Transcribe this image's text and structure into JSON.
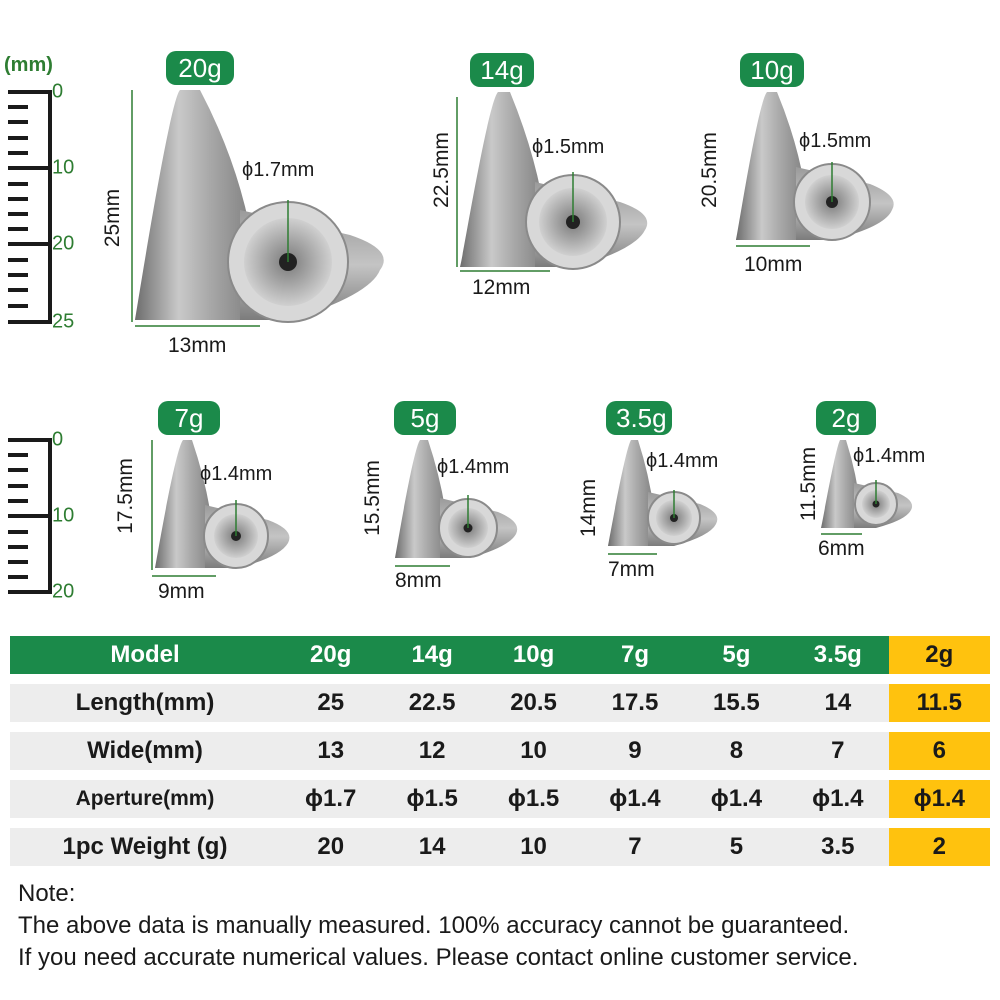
{
  "unit_label": "(mm)",
  "ruler_top": {
    "labels": [
      "0",
      "10",
      "20",
      "25"
    ]
  },
  "ruler_bottom": {
    "labels": [
      "0",
      "10",
      "20"
    ]
  },
  "sinkers": [
    {
      "weight": "20g",
      "length": "25mm",
      "width": "13mm",
      "aperture": "ϕ1.7mm"
    },
    {
      "weight": "14g",
      "length": "22.5mm",
      "width": "12mm",
      "aperture": "ϕ1.5mm"
    },
    {
      "weight": "10g",
      "length": "20.5mm",
      "width": "10mm",
      "aperture": "ϕ1.5mm"
    },
    {
      "weight": "7g",
      "length": "17.5mm",
      "width": "9mm",
      "aperture": "ϕ1.4mm"
    },
    {
      "weight": "5g",
      "length": "15.5mm",
      "width": "8mm",
      "aperture": "ϕ1.4mm"
    },
    {
      "weight": "3.5g",
      "length": "14mm",
      "width": "7mm",
      "aperture": "ϕ1.4mm"
    },
    {
      "weight": "2g",
      "length": "11.5mm",
      "width": "6mm",
      "aperture": "ϕ1.4mm"
    }
  ],
  "table": {
    "header": [
      "Model",
      "20g",
      "14g",
      "10g",
      "7g",
      "5g",
      "3.5g",
      "2g"
    ],
    "rows": [
      [
        "Length(mm)",
        "25",
        "22.5",
        "20.5",
        "17.5",
        "15.5",
        "14",
        "11.5"
      ],
      [
        "Wide(mm)",
        "13",
        "12",
        "10",
        "9",
        "8",
        "7",
        "6"
      ],
      [
        "Aperture(mm)",
        "ϕ1.7",
        "ϕ1.5",
        "ϕ1.5",
        "ϕ1.4",
        "ϕ1.4",
        "ϕ1.4",
        "ϕ1.4"
      ],
      [
        "1pc Weight (g)",
        "20",
        "14",
        "10",
        "7",
        "5",
        "3.5",
        "2"
      ]
    ]
  },
  "note": {
    "title": "Note:",
    "line1": "The above data is manually measured. 100% accuracy cannot be guaranteed.",
    "line2": "If you need accurate numerical values. Please contact online customer service."
  },
  "colors": {
    "brand_green": "#1b8a4a",
    "highlight_yellow": "#ffc20e",
    "row_gray": "#ededed",
    "ruler_green": "#2e7d32"
  }
}
